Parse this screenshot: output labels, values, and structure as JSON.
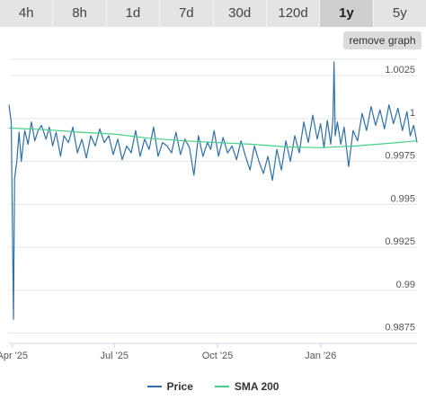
{
  "tabs": [
    {
      "label": "4h"
    },
    {
      "label": "8h"
    },
    {
      "label": "1d"
    },
    {
      "label": "7d"
    },
    {
      "label": "30d"
    },
    {
      "label": "120d"
    },
    {
      "label": "1y"
    },
    {
      "label": "5y"
    }
  ],
  "active_tab": "1y",
  "remove_graph_label": "remove graph",
  "legend": {
    "price_label": "Price",
    "sma_label": "SMA 200",
    "price_color": "#2f6fa8",
    "sma_color": "#45d08a"
  },
  "chart_data": {
    "type": "line",
    "xlabel": "",
    "ylabel": "",
    "x_ticks": [
      "Apr '25",
      "Jul '25",
      "Oct '25",
      "Jan '26"
    ],
    "x_tick_dates": [
      "2025-04-01",
      "2025-07-01",
      "2025-10-01",
      "2026-01-01"
    ],
    "x_range": [
      "2025-03-29",
      "2026-03-28"
    ],
    "y_ticks": [
      "0.9875",
      "0.99",
      "0.9925",
      "0.995",
      "0.9975",
      "1",
      "1.0025"
    ],
    "ylim": [
      0.9869,
      1.00345
    ],
    "grid": true,
    "series": [
      {
        "name": "Price",
        "color": "#2f6fa8",
        "x": [
          "2025-03-29",
          "2025-03-31",
          "2025-04-02",
          "2025-04-03",
          "2025-04-05",
          "2025-04-07",
          "2025-04-09",
          "2025-04-12",
          "2025-04-15",
          "2025-04-18",
          "2025-04-21",
          "2025-04-24",
          "2025-04-27",
          "2025-05-01",
          "2025-05-04",
          "2025-05-07",
          "2025-05-10",
          "2025-05-14",
          "2025-05-17",
          "2025-05-21",
          "2025-05-25",
          "2025-05-29",
          "2025-06-02",
          "2025-06-06",
          "2025-06-10",
          "2025-06-14",
          "2025-06-18",
          "2025-06-22",
          "2025-06-26",
          "2025-06-30",
          "2025-07-04",
          "2025-07-08",
          "2025-07-12",
          "2025-07-16",
          "2025-07-20",
          "2025-07-24",
          "2025-07-28",
          "2025-08-01",
          "2025-08-05",
          "2025-08-09",
          "2025-08-13",
          "2025-08-17",
          "2025-08-21",
          "2025-08-25",
          "2025-08-29",
          "2025-09-02",
          "2025-09-06",
          "2025-09-10",
          "2025-09-14",
          "2025-09-18",
          "2025-09-22",
          "2025-09-25",
          "2025-09-28",
          "2025-10-02",
          "2025-10-06",
          "2025-10-10",
          "2025-10-14",
          "2025-10-18",
          "2025-10-22",
          "2025-10-26",
          "2025-10-30",
          "2025-11-03",
          "2025-11-07",
          "2025-11-11",
          "2025-11-15",
          "2025-11-19",
          "2025-11-23",
          "2025-11-27",
          "2025-12-01",
          "2025-12-05",
          "2025-12-09",
          "2025-12-13",
          "2025-12-17",
          "2025-12-21",
          "2025-12-25",
          "2025-12-29",
          "2026-01-01",
          "2026-01-04",
          "2026-01-07",
          "2026-01-10",
          "2026-01-12",
          "2026-01-13",
          "2026-01-14",
          "2026-01-16",
          "2026-01-19",
          "2026-01-22",
          "2026-01-26",
          "2026-01-30",
          "2026-02-03",
          "2026-02-07",
          "2026-02-11",
          "2026-02-15",
          "2026-02-19",
          "2026-02-23",
          "2026-02-27",
          "2026-03-03",
          "2026-03-07",
          "2026-03-11",
          "2026-03-15",
          "2026-03-19",
          "2026-03-22",
          "2026-03-25",
          "2026-03-28"
        ],
        "y": [
          1.0008,
          0.9998,
          0.9883,
          0.9965,
          0.9975,
          0.9992,
          0.9975,
          0.9993,
          0.9985,
          0.9998,
          0.9987,
          0.9993,
          0.9996,
          0.9988,
          0.9995,
          0.9984,
          0.9992,
          0.9978,
          0.999,
          0.9986,
          0.9995,
          0.998,
          0.9988,
          0.9977,
          0.999,
          0.9984,
          0.9994,
          0.9986,
          0.999,
          0.9979,
          0.9988,
          0.9976,
          0.9984,
          0.998,
          0.9993,
          0.9978,
          0.9988,
          0.9982,
          0.9995,
          0.9978,
          0.9986,
          0.9984,
          0.998,
          0.9992,
          0.9979,
          0.9988,
          0.9983,
          0.9967,
          0.999,
          0.9978,
          0.9986,
          0.9982,
          0.9993,
          0.9978,
          0.9989,
          0.998,
          0.9984,
          0.9976,
          0.9987,
          0.9978,
          0.997,
          0.9984,
          0.9975,
          0.9968,
          0.9978,
          0.9964,
          0.9982,
          0.997,
          0.9987,
          0.9975,
          0.999,
          0.998,
          0.9998,
          0.9986,
          1.0002,
          0.9988,
          0.9997,
          0.9983,
          0.9999,
          0.9985,
          1.0,
          1.0033,
          0.999,
          0.9998,
          0.9985,
          0.9995,
          0.9972,
          0.9993,
          0.9987,
          1.0003,
          0.9993,
          1.0007,
          0.9996,
          1.0005,
          0.9994,
          1.0008,
          0.9997,
          1.0006,
          0.9993,
          1.0004,
          0.999,
          0.9996,
          0.9986
        ]
      },
      {
        "name": "SMA 200",
        "color": "#45d08a",
        "x": [
          "2025-03-29",
          "2025-05-01",
          "2025-06-01",
          "2025-07-01",
          "2025-08-01",
          "2025-09-01",
          "2025-10-01",
          "2025-11-01",
          "2025-12-01",
          "2026-01-01",
          "2026-02-01",
          "2026-03-01",
          "2026-03-28"
        ],
        "y": [
          0.99945,
          0.99935,
          0.9992,
          0.9991,
          0.99885,
          0.9987,
          0.9986,
          0.9985,
          0.99835,
          0.9983,
          0.9984,
          0.99855,
          0.9987
        ]
      }
    ]
  }
}
